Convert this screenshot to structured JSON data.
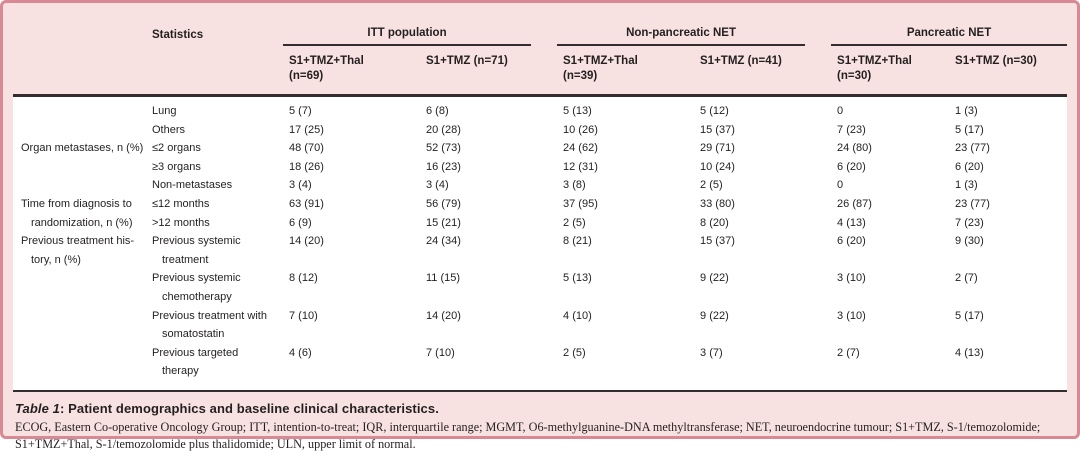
{
  "colors": {
    "page_background": "#f8e2e1",
    "outer_border": "#d98993",
    "rule": "#342c2e",
    "text": "#231f20",
    "body_background": "#ffffff"
  },
  "header": {
    "statistics_label": "Statistics",
    "groups": [
      {
        "label": "ITT population",
        "cols": [
          "S1+TMZ+Thal\n(n=69)",
          "S1+TMZ (n=71)"
        ]
      },
      {
        "label": "Non-pancreatic NET",
        "cols": [
          "S1+TMZ+Thal\n(n=39)",
          "S1+TMZ (n=41)"
        ]
      },
      {
        "label": "Pancreatic NET",
        "cols": [
          "S1+TMZ+Thal\n(n=30)",
          "S1+TMZ (n=30)"
        ]
      }
    ]
  },
  "rows": [
    {
      "group": "",
      "stat": "Lung",
      "values": [
        "5 (7)",
        "6 (8)",
        "5 (13)",
        "5 (12)",
        "0",
        "1 (3)"
      ]
    },
    {
      "group": "",
      "stat": "Others",
      "values": [
        "17 (25)",
        "20 (28)",
        "10 (26)",
        "15 (37)",
        "7 (23)",
        "5 (17)"
      ]
    },
    {
      "group": "Organ metastases, n (%)",
      "stat": "≤2 organs",
      "values": [
        "48 (70)",
        "52 (73)",
        "24 (62)",
        "29 (71)",
        "24 (80)",
        "23 (77)"
      ]
    },
    {
      "group": "",
      "stat": "≥3 organs",
      "values": [
        "18 (26)",
        "16 (23)",
        "12 (31)",
        "10 (24)",
        "6 (20)",
        "6 (20)"
      ]
    },
    {
      "group": "",
      "stat": "Non-metastases",
      "values": [
        "3 (4)",
        "3 (4)",
        "3 (8)",
        "2 (5)",
        "0",
        "1 (3)"
      ]
    },
    {
      "group": "Time from diagnosis to",
      "stat": "≤12 months",
      "values": [
        "63 (91)",
        "56 (79)",
        "37 (95)",
        "33 (80)",
        "26 (87)",
        "23 (77)"
      ]
    },
    {
      "group": "randomization, n (%)",
      "stat": ">12 months",
      "values": [
        "6 (9)",
        "15 (21)",
        "2 (5)",
        "8 (20)",
        "4 (13)",
        "7 (23)"
      ]
    },
    {
      "group": "Previous treatment his-\ntory, n (%)",
      "stat": "Previous systemic\ntreatment",
      "values": [
        "14 (20)",
        "24 (34)",
        "8 (21)",
        "15 (37)",
        "6 (20)",
        "9 (30)"
      ]
    },
    {
      "group": "",
      "stat": "Previous systemic\nchemotherapy",
      "values": [
        "8 (12)",
        "11 (15)",
        "5 (13)",
        "9 (22)",
        "3 (10)",
        "2 (7)"
      ]
    },
    {
      "group": "",
      "stat": "Previous treatment with\nsomatostatin",
      "values": [
        "7 (10)",
        "14 (20)",
        "4 (10)",
        "9 (22)",
        "3 (10)",
        "5 (17)"
      ]
    },
    {
      "group": "",
      "stat": "Previous targeted\ntherapy",
      "values": [
        "4 (6)",
        "7 (10)",
        "2 (5)",
        "3 (7)",
        "2 (7)",
        "4 (13)"
      ]
    }
  ],
  "caption": {
    "prefix": "Table 1",
    "text": ": Patient demographics and baseline clinical characteristics."
  },
  "footnote": "ECOG, Eastern Co-operative Oncology Group; ITT, intention-to-treat; IQR, interquartile range; MGMT, O6-methylguanine-DNA methyltransferase; NET, neuroendocrine tumour; S1+TMZ, S-1/temozolomide; S1+TMZ+Thal, S-1/temozolomide plus thalidomide; ULN, upper limit of normal."
}
